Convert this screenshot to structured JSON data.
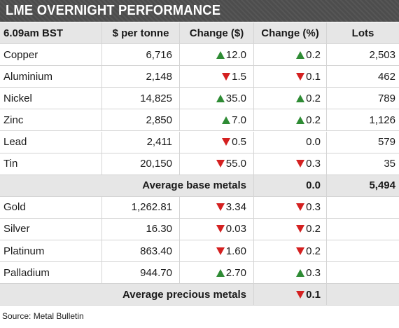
{
  "title": "LME OVERNIGHT PERFORMANCE",
  "header": {
    "time": "6.09am BST",
    "price": "$ per tonne",
    "change_abs": "Change ($)",
    "change_pct": "Change (%)",
    "lots": "Lots"
  },
  "colors": {
    "up": "#2e8b34",
    "down": "#d42020",
    "title_bg": "#4d4d4d",
    "band_bg": "#e6e6e6"
  },
  "base_metals": [
    {
      "name": "Copper",
      "price": "6,716",
      "change_dir": "up",
      "change": "12.0",
      "pct_dir": "up",
      "pct": "0.2",
      "lots": "2,503"
    },
    {
      "name": "Aluminium",
      "price": "2,148",
      "change_dir": "down",
      "change": "1.5",
      "pct_dir": "down",
      "pct": "0.1",
      "lots": "462"
    },
    {
      "name": "Nickel",
      "price": "14,825",
      "change_dir": "up",
      "change": "35.0",
      "pct_dir": "up",
      "pct": "0.2",
      "lots": "789"
    },
    {
      "name": "Zinc",
      "price": "2,850",
      "change_dir": "up",
      "change": "7.0",
      "pct_dir": "up",
      "pct": "0.2",
      "lots": "1,126"
    },
    {
      "name": "Lead",
      "price": "2,411",
      "change_dir": "down",
      "change": "0.5",
      "pct_dir": "none",
      "pct": "0.0",
      "lots": "579"
    },
    {
      "name": "Tin",
      "price": "20,150",
      "change_dir": "down",
      "change": "55.0",
      "pct_dir": "down",
      "pct": "0.3",
      "lots": "35"
    }
  ],
  "avg_base": {
    "label": "Average base metals",
    "pct_dir": "none",
    "pct": "0.0",
    "lots": "5,494"
  },
  "precious_metals": [
    {
      "name": "Gold",
      "price": "1,262.81",
      "change_dir": "down",
      "change": "3.34",
      "pct_dir": "down",
      "pct": "0.3",
      "lots": ""
    },
    {
      "name": "Silver",
      "price": "16.30",
      "change_dir": "down",
      "change": "0.03",
      "pct_dir": "down",
      "pct": "0.2",
      "lots": ""
    },
    {
      "name": "Platinum",
      "price": "863.40",
      "change_dir": "down",
      "change": "1.60",
      "pct_dir": "down",
      "pct": "0.2",
      "lots": ""
    },
    {
      "name": "Palladium",
      "price": "944.70",
      "change_dir": "up",
      "change": "2.70",
      "pct_dir": "up",
      "pct": "0.3",
      "lots": ""
    }
  ],
  "avg_precious": {
    "label": "Average precious metals",
    "pct_dir": "down",
    "pct": "0.1",
    "lots": ""
  },
  "source": "Source: Metal Bulletin"
}
